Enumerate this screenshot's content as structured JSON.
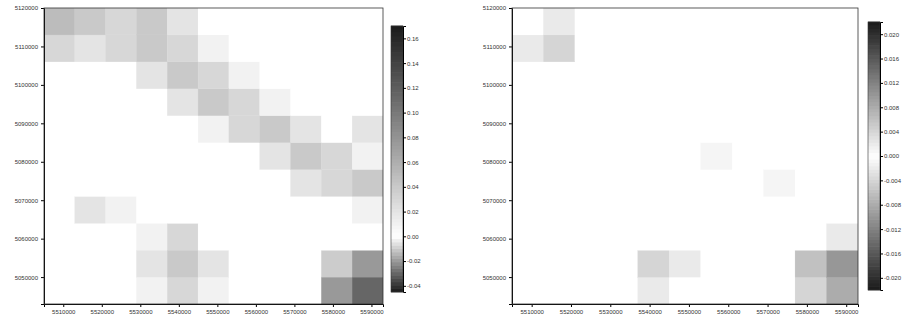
{
  "chart_data": [
    {
      "type": "heatmap",
      "x": [
        5509000,
        5517000,
        5525000,
        5533000,
        5541000,
        5549000,
        5557000,
        5565000,
        5573000,
        5581000,
        5589000
      ],
      "y": [
        5046500,
        5053500,
        5060500,
        5067500,
        5074500,
        5081500,
        5088500,
        5095500,
        5102500,
        5109500,
        5116500
      ],
      "z": [
        [
          0,
          0,
          0,
          0.01,
          0.03,
          0.01,
          0,
          0,
          0,
          -0.02,
          -0.03
        ],
        [
          0,
          0,
          0,
          0.02,
          0.04,
          0.02,
          0,
          0,
          0,
          -0.01,
          -0.02
        ],
        [
          0,
          0,
          0,
          0.01,
          0.03,
          0,
          0,
          0,
          0,
          0,
          0
        ],
        [
          0,
          0.02,
          0.01,
          0,
          0,
          0,
          0,
          0,
          0,
          0,
          0.01
        ],
        [
          0,
          0,
          0,
          0,
          0,
          0,
          0,
          0,
          0.02,
          0.03,
          0.04
        ],
        [
          0,
          0,
          0,
          0,
          0,
          0,
          0,
          0.02,
          0.04,
          0.03,
          0.01
        ],
        [
          0,
          0,
          0,
          0,
          0,
          0.01,
          0.03,
          0.04,
          0.02,
          0,
          0.02
        ],
        [
          0,
          0,
          0,
          0,
          0.02,
          0.04,
          0.03,
          0.01,
          0,
          0,
          0
        ],
        [
          0,
          0,
          0,
          0.02,
          0.04,
          0.03,
          0.01,
          0,
          0,
          0,
          0
        ],
        [
          0.03,
          0.02,
          0.03,
          0.04,
          0.03,
          0.01,
          0,
          0,
          0,
          0,
          0
        ],
        [
          0.05,
          0.04,
          0.03,
          0.04,
          0.02,
          0,
          0,
          0,
          0,
          0,
          0
        ]
      ],
      "xlim": [
        5505000,
        5593000
      ],
      "ylim": [
        5043000,
        5120000
      ],
      "xticks": [
        5510000,
        5520000,
        5530000,
        5540000,
        5550000,
        5560000,
        5570000,
        5580000,
        5590000
      ],
      "yticks": [
        5050000,
        5060000,
        5070000,
        5080000,
        5090000,
        5100000,
        5110000,
        5120000
      ],
      "zlim": [
        -0.045,
        0.17
      ],
      "zticks": [
        {
          "value": -0.04,
          "label": "-0.04"
        },
        {
          "value": -0.02,
          "label": "-0.02"
        },
        {
          "value": 0,
          "label": "0.00"
        },
        {
          "value": 0.02,
          "label": "0.02"
        },
        {
          "value": 0.04,
          "label": "0.04"
        },
        {
          "value": 0.06,
          "label": "0.06"
        },
        {
          "value": 0.08,
          "label": "0.08"
        },
        {
          "value": 0.1,
          "label": "0.10"
        },
        {
          "value": 0.12,
          "label": "0.12"
        },
        {
          "value": 0.14,
          "label": "0.14"
        },
        {
          "value": 0.16,
          "label": "0.16"
        }
      ]
    },
    {
      "type": "heatmap",
      "x": [
        5509000,
        5517000,
        5525000,
        5533000,
        5541000,
        5549000,
        5557000,
        5565000,
        5573000,
        5581000,
        5589000
      ],
      "y": [
        5046500,
        5053500,
        5060500,
        5067500,
        5074500,
        5081500,
        5088500,
        5095500,
        5102500,
        5109500,
        5116500
      ],
      "z": [
        [
          0,
          0,
          0,
          0,
          0.002,
          0,
          0,
          0,
          0,
          -0.004,
          -0.008
        ],
        [
          0,
          0,
          0,
          0,
          0.004,
          0.002,
          0,
          0,
          0,
          -0.006,
          -0.01
        ],
        [
          0,
          0,
          0,
          0,
          0,
          0,
          0,
          0,
          0,
          0,
          -0.002
        ],
        [
          0,
          0,
          0,
          0,
          0,
          0,
          0,
          0,
          0,
          0,
          0
        ],
        [
          0,
          0,
          0,
          0,
          0,
          0,
          0,
          0,
          0.001,
          0,
          0
        ],
        [
          0,
          0,
          0,
          0,
          0,
          0,
          0.001,
          0,
          0,
          0,
          0
        ],
        [
          0,
          0,
          0,
          0,
          0,
          0,
          0,
          0,
          0,
          0,
          0
        ],
        [
          0,
          0,
          0,
          0,
          0,
          0,
          0,
          0,
          0,
          0,
          0
        ],
        [
          0,
          0,
          0,
          0,
          0,
          0,
          0,
          0,
          0,
          0,
          0
        ],
        [
          0.002,
          0.004,
          0,
          0,
          0,
          0,
          0,
          0,
          0,
          0,
          0
        ],
        [
          0,
          0.002,
          0,
          0,
          0,
          0,
          0,
          0,
          0,
          0,
          0
        ]
      ],
      "xlim": [
        5505000,
        5593000
      ],
      "ylim": [
        5043000,
        5120000
      ],
      "xticks": [
        5510000,
        5520000,
        5530000,
        5540000,
        5550000,
        5560000,
        5570000,
        5580000,
        5590000
      ],
      "yticks": [
        5050000,
        5060000,
        5070000,
        5080000,
        5090000,
        5100000,
        5110000,
        5120000
      ],
      "zlim": [
        -0.022,
        0.022
      ],
      "zticks": [
        {
          "value": -0.02,
          "label": "-0.020"
        },
        {
          "value": -0.016,
          "label": "-0.016"
        },
        {
          "value": -0.012,
          "label": "-0.012"
        },
        {
          "value": -0.008,
          "label": "-0.008"
        },
        {
          "value": -0.004,
          "label": "-0.004"
        },
        {
          "value": 0,
          "label": "0.000"
        },
        {
          "value": 0.004,
          "label": "0.004"
        },
        {
          "value": 0.008,
          "label": "0.008"
        },
        {
          "value": 0.012,
          "label": "0.012"
        },
        {
          "value": 0.016,
          "label": "0.016"
        },
        {
          "value": 0.02,
          "label": "0.020"
        }
      ]
    }
  ]
}
